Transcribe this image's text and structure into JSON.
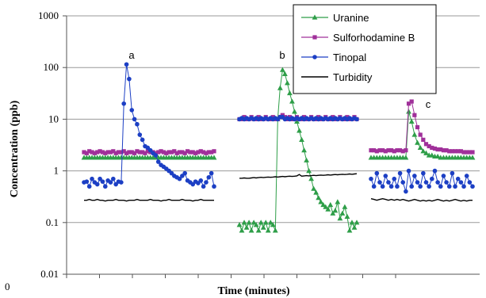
{
  "chart_data": {
    "type": "line",
    "xlabel": "Time (minutes)",
    "ylabel": "Concentration (ppb)",
    "yscale": "log",
    "ylim": [
      0.01,
      1000
    ],
    "yticks": [
      "0.01",
      "0.1",
      "1",
      "10",
      "100",
      "1000"
    ],
    "grid": "horizontal",
    "legend": "top-right",
    "corner_label": "0",
    "annotations": [
      {
        "text": "a",
        "panel": 0
      },
      {
        "text": "b",
        "panel": 1
      },
      {
        "text": "c",
        "panel": 2
      }
    ],
    "series": [
      {
        "name": "Uranine",
        "color": "#2e9e48",
        "marker": "triangle",
        "panels": [
          [
            1.8,
            1.8,
            1.8,
            1.8,
            1.8,
            1.8,
            1.8,
            1.8,
            1.8,
            1.8,
            1.8,
            1.8,
            1.8,
            1.8,
            1.8,
            1.8,
            1.8,
            1.8,
            1.8,
            1.8,
            1.8,
            1.8,
            1.8,
            1.8,
            1.8,
            1.8,
            1.8,
            1.8,
            1.8,
            1.8,
            1.8,
            1.8,
            1.8,
            1.8,
            1.8,
            1.8,
            1.8,
            1.8,
            1.8,
            1.8,
            1.8,
            1.8,
            1.8,
            1.8,
            1.8,
            1.8,
            1.8,
            1.8,
            1.8,
            1.8
          ],
          [
            0.09,
            0.07,
            0.1,
            0.08,
            0.1,
            0.07,
            0.1,
            0.09,
            0.07,
            0.1,
            0.08,
            0.1,
            0.07,
            0.1,
            0.09,
            0.07,
            10,
            40,
            90,
            75,
            50,
            32,
            22,
            14,
            9,
            6,
            4,
            2.5,
            1.6,
            1,
            0.7,
            0.45,
            0.38,
            0.3,
            0.25,
            0.22,
            0.2,
            0.18,
            0.22,
            0.15,
            0.17,
            0.25,
            0.12,
            0.15,
            0.2,
            0.13,
            0.07,
            0.1,
            0.08,
            0.1
          ],
          [
            1.8,
            1.8,
            1.8,
            1.8,
            1.8,
            1.8,
            1.8,
            1.8,
            1.8,
            1.8,
            1.8,
            1.8,
            1.8,
            14,
            9,
            5,
            3.5,
            2.8,
            2.4,
            2.2,
            2,
            2,
            1.9,
            1.9,
            1.8,
            1.8,
            1.8,
            1.8,
            1.8,
            1.8,
            1.8,
            1.8,
            1.8,
            1.8,
            1.8,
            1.8
          ]
        ]
      },
      {
        "name": "Sulforhodamine B",
        "color": "#a0309a",
        "marker": "square",
        "panels": [
          [
            2.3,
            2.2,
            2.4,
            2.3,
            2.2,
            2.3,
            2.4,
            2.3,
            2.2,
            2.3,
            2.3,
            2.4,
            2.2,
            2.3,
            2.3,
            2.4,
            2.2,
            2.3,
            2.3,
            2.2,
            2.4,
            2.3,
            2.3,
            2.2,
            2.4,
            2.3,
            2.3,
            2.2,
            2.3,
            2.4,
            2.3,
            2.2,
            2.3,
            2.3,
            2.4,
            2.2,
            2.3,
            2.3,
            2.2,
            2.4,
            2.3,
            2.3,
            2.2,
            2.3,
            2.4,
            2.3,
            2.2,
            2.3,
            2.3,
            2.4
          ],
          [
            10,
            10,
            11,
            10,
            10,
            11,
            10,
            10,
            11,
            10,
            10,
            11,
            10,
            10,
            11,
            10,
            10,
            11,
            12,
            11,
            10,
            11,
            10,
            10,
            11,
            10,
            10,
            11,
            10,
            10,
            11,
            10,
            10,
            11,
            10,
            10,
            11,
            10,
            10,
            11,
            10,
            10,
            11,
            10,
            10,
            11,
            10,
            10,
            11,
            10
          ],
          [
            2.5,
            2.5,
            2.4,
            2.5,
            2.5,
            2.4,
            2.5,
            2.5,
            2.4,
            2.5,
            2.5,
            2.4,
            2.5,
            20,
            22,
            12,
            7,
            5,
            4,
            3.3,
            3,
            2.8,
            2.7,
            2.6,
            2.6,
            2.5,
            2.5,
            2.4,
            2.4,
            2.4,
            2.4,
            2.4,
            2.3,
            2.3,
            2.3,
            2.3
          ]
        ]
      },
      {
        "name": "Tinopal",
        "color": "#1c3fc4",
        "marker": "circle",
        "panels": [
          [
            0.6,
            0.62,
            0.5,
            0.7,
            0.6,
            0.55,
            0.7,
            0.62,
            0.5,
            0.65,
            0.6,
            0.7,
            0.55,
            0.62,
            0.6,
            20,
            115,
            60,
            15,
            10,
            8,
            5,
            4,
            3,
            2.8,
            2.5,
            2.2,
            2,
            1.5,
            1.3,
            1.2,
            1.1,
            1,
            0.9,
            0.8,
            0.75,
            0.7,
            0.8,
            0.9,
            0.65,
            0.6,
            0.55,
            0.62,
            0.58,
            0.65,
            0.5,
            0.6,
            0.75,
            0.9,
            0.5
          ],
          [
            10,
            10.5,
            10,
            10.5,
            10,
            10.5,
            10,
            10.5,
            10,
            10.5,
            10,
            10.5,
            10,
            10.5,
            10,
            10.5,
            10,
            11,
            11,
            10,
            10.5,
            10,
            10.5,
            10,
            10.5,
            10,
            10.5,
            10,
            10.5,
            10,
            10.5,
            10,
            10.5,
            10,
            10.5,
            10,
            10.5,
            10,
            10.5,
            10,
            10.5,
            10,
            10.5,
            10,
            10.5,
            10,
            10.5,
            10,
            10.5,
            10
          ],
          [
            0.7,
            0.5,
            0.9,
            0.6,
            0.5,
            0.8,
            0.6,
            0.5,
            0.7,
            0.5,
            0.9,
            0.6,
            0.4,
            1.0,
            0.5,
            0.8,
            0.6,
            0.5,
            0.9,
            0.6,
            0.5,
            0.7,
            1.0,
            0.6,
            0.5,
            0.8,
            0.6,
            0.5,
            0.9,
            0.5,
            0.7,
            0.6,
            0.5,
            0.8,
            0.6,
            0.5
          ]
        ]
      },
      {
        "name": "Turbidity",
        "color": "#000000",
        "marker": "none",
        "panels": [
          [
            0.27,
            0.27,
            0.28,
            0.27,
            0.27,
            0.28,
            0.27,
            0.27,
            0.26,
            0.27,
            0.27,
            0.27,
            0.28,
            0.27,
            0.27,
            0.27,
            0.26,
            0.27,
            0.27,
            0.27,
            0.28,
            0.27,
            0.27,
            0.27,
            0.27,
            0.28,
            0.27,
            0.27,
            0.27,
            0.26,
            0.27,
            0.27,
            0.28,
            0.27,
            0.27,
            0.27,
            0.27,
            0.28,
            0.27,
            0.27,
            0.27,
            0.26,
            0.27,
            0.27,
            0.28,
            0.27,
            0.27,
            0.27,
            0.27,
            0.27
          ],
          [
            0.72,
            0.72,
            0.73,
            0.72,
            0.72,
            0.73,
            0.74,
            0.73,
            0.74,
            0.75,
            0.74,
            0.75,
            0.76,
            0.75,
            0.76,
            0.77,
            0.76,
            0.77,
            0.78,
            0.77,
            0.78,
            0.79,
            0.78,
            0.79,
            0.8,
            0.85,
            0.79,
            0.8,
            0.81,
            0.8,
            0.81,
            0.82,
            0.81,
            0.82,
            0.83,
            0.82,
            0.83,
            0.84,
            0.83,
            0.84,
            0.85,
            0.84,
            0.85,
            0.86,
            0.85,
            0.86,
            0.87,
            0.86,
            0.87,
            0.88
          ],
          [
            0.29,
            0.28,
            0.27,
            0.28,
            0.29,
            0.28,
            0.27,
            0.28,
            0.27,
            0.28,
            0.27,
            0.28,
            0.27,
            0.26,
            0.27,
            0.28,
            0.27,
            0.26,
            0.27,
            0.26,
            0.27,
            0.26,
            0.27,
            0.28,
            0.27,
            0.26,
            0.27,
            0.26,
            0.27,
            0.28,
            0.27,
            0.26,
            0.27,
            0.26,
            0.27,
            0.27
          ]
        ]
      }
    ]
  }
}
